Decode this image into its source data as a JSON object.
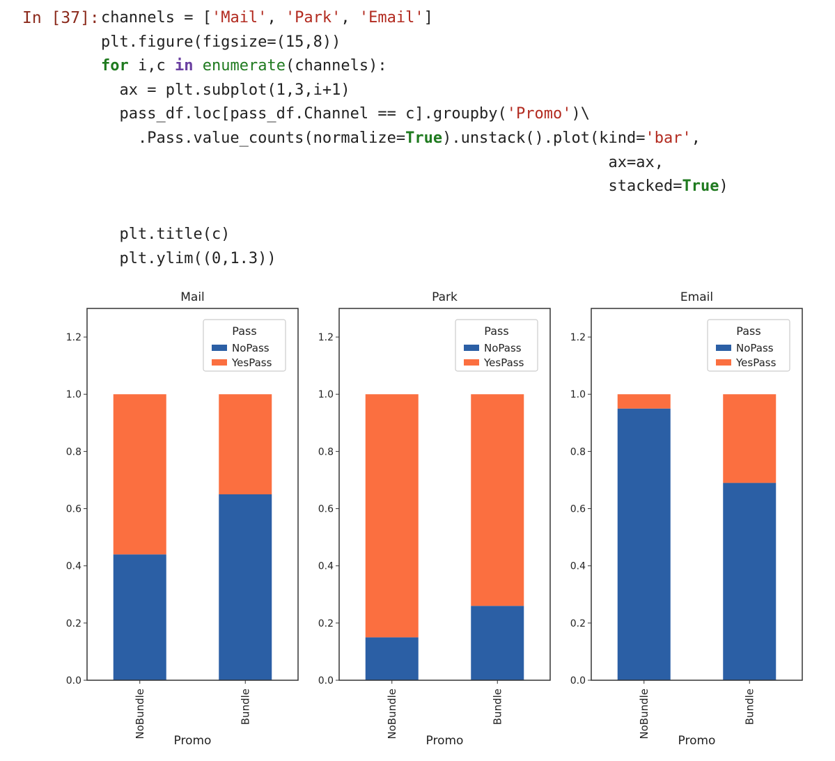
{
  "cell": {
    "prompt": "In [37]:",
    "code_lines": [
      [
        {
          "t": "channels = ["
        },
        {
          "t": "'Mail'",
          "c": "str"
        },
        {
          "t": ", "
        },
        {
          "t": "'Park'",
          "c": "str"
        },
        {
          "t": ", "
        },
        {
          "t": "'Email'",
          "c": "str"
        },
        {
          "t": "]"
        }
      ],
      [
        {
          "t": "plt.figure(figsize=(15,8))"
        }
      ],
      [
        {
          "t": "for",
          "c": "kw"
        },
        {
          "t": " i,c "
        },
        {
          "t": "in",
          "c": "op"
        },
        {
          "t": " "
        },
        {
          "t": "enumerate",
          "c": "bi"
        },
        {
          "t": "(channels):"
        }
      ],
      [
        {
          "t": "  ax = plt.subplot(1,3,i+1)"
        }
      ],
      [
        {
          "t": "  pass_df.loc[pass_df.Channel == c].groupby("
        },
        {
          "t": "'Promo'",
          "c": "str"
        },
        {
          "t": ")\\"
        }
      ],
      [
        {
          "t": "    .Pass.value_counts(normalize="
        },
        {
          "t": "True",
          "c": "kw"
        },
        {
          "t": ").unstack().plot(kind="
        },
        {
          "t": "'bar'",
          "c": "str"
        },
        {
          "t": ","
        }
      ],
      [
        {
          "t": "                                                       ax=ax,"
        }
      ],
      [
        {
          "t": "                                                       stacked="
        },
        {
          "t": "True",
          "c": "kw"
        },
        {
          "t": ")"
        }
      ],
      [
        {
          "t": ""
        }
      ],
      [
        {
          "t": "  plt.title(c)"
        }
      ],
      [
        {
          "t": "  plt.ylim((0,1.3))"
        }
      ]
    ]
  },
  "chart_data": [
    {
      "type": "bar",
      "stacked": true,
      "title": "Mail",
      "xlabel": "Promo",
      "categories": [
        "NoBundle",
        "Bundle"
      ],
      "series": [
        {
          "name": "NoPass",
          "values": [
            0.44,
            0.65
          ]
        },
        {
          "name": "YesPass",
          "values": [
            0.56,
            0.35
          ]
        }
      ],
      "ylim": [
        0,
        1.3
      ],
      "yticks": [
        "0.0",
        "0.2",
        "0.4",
        "0.6",
        "0.8",
        "1.0",
        "1.2"
      ],
      "legend": {
        "title": "Pass",
        "placement": "top-right"
      },
      "grid": false
    },
    {
      "type": "bar",
      "stacked": true,
      "title": "Park",
      "xlabel": "Promo",
      "categories": [
        "NoBundle",
        "Bundle"
      ],
      "series": [
        {
          "name": "NoPass",
          "values": [
            0.15,
            0.26
          ]
        },
        {
          "name": "YesPass",
          "values": [
            0.85,
            0.74
          ]
        }
      ],
      "ylim": [
        0,
        1.3
      ],
      "yticks": [
        "0.0",
        "0.2",
        "0.4",
        "0.6",
        "0.8",
        "1.0",
        "1.2"
      ],
      "legend": {
        "title": "Pass",
        "placement": "top-right"
      },
      "grid": false
    },
    {
      "type": "bar",
      "stacked": true,
      "title": "Email",
      "xlabel": "Promo",
      "categories": [
        "NoBundle",
        "Bundle"
      ],
      "series": [
        {
          "name": "NoPass",
          "values": [
            0.95,
            0.69
          ]
        },
        {
          "name": "YesPass",
          "values": [
            0.05,
            0.31
          ]
        }
      ],
      "ylim": [
        0,
        1.3
      ],
      "yticks": [
        "0.0",
        "0.2",
        "0.4",
        "0.6",
        "0.8",
        "1.0",
        "1.2"
      ],
      "legend": {
        "title": "Pass",
        "placement": "top-right"
      },
      "grid": false
    }
  ],
  "colors": {
    "NoPass": "#2b5fa5",
    "YesPass": "#fb6f40"
  }
}
